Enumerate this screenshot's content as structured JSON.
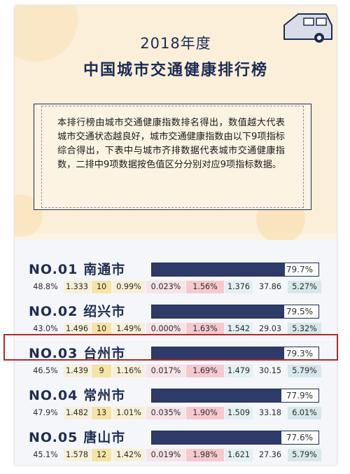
{
  "header": {
    "title_year": "2018年度",
    "title_main": "中国城市交通健康排行榜"
  },
  "description": "本排行榜由城市交通健康指数排名得出，数值越大代表城市交通状态越良好，城市交通健康指数由以下9项指标综合得出，下表中与城市齐排数据代表城市交通健康指数，二排中9项数据按色值区分分别对应9项指标数据。",
  "colors": {
    "navy": "#1f2d53",
    "bar_fill": "#2e3b68",
    "highlight": "#b12a2a",
    "metric_bg": [
      "#f4f6fa",
      "#f7f0d8",
      "#f6e4a6",
      "#f7f0d8",
      "#f7e3e8",
      "#f6c9cf",
      "#e3f0f3",
      "#f4f6fa",
      "#d7e8ea"
    ]
  },
  "rankings": [
    {
      "rank": "NO.01",
      "city": "南通市",
      "index_pct": 79.7,
      "index": "79.7%",
      "metrics": [
        "48.8%",
        "1.333",
        "10",
        "0.99%",
        "0.023%",
        "1.56%",
        "1.376",
        "37.86",
        "5.27%"
      ]
    },
    {
      "rank": "NO.02",
      "city": "绍兴市",
      "index_pct": 79.5,
      "index": "79.5%",
      "metrics": [
        "43.0%",
        "1.496",
        "10",
        "1.49%",
        "0.000%",
        "1.63%",
        "1.542",
        "29.03",
        "5.32%"
      ]
    },
    {
      "rank": "NO.03",
      "city": "台州市",
      "index_pct": 79.3,
      "index": "79.3%",
      "metrics": [
        "46.5%",
        "1.439",
        "9",
        "1.16%",
        "0.017%",
        "1.69%",
        "1.479",
        "30.15",
        "5.79%"
      ]
    },
    {
      "rank": "NO.04",
      "city": "常州市",
      "index_pct": 77.9,
      "index": "77.9%",
      "metrics": [
        "47.9%",
        "1.482",
        "13",
        "1.01%",
        "0.035%",
        "1.90%",
        "1.509",
        "33.18",
        "6.01%"
      ]
    },
    {
      "rank": "NO.05",
      "city": "唐山市",
      "index_pct": 77.6,
      "index": "77.6%",
      "metrics": [
        "45.1%",
        "1.578",
        "12",
        "1.42%",
        "0.019%",
        "1.98%",
        "1.621",
        "27.36",
        "5.79%"
      ]
    }
  ],
  "highlighted_rank": "NO.03"
}
